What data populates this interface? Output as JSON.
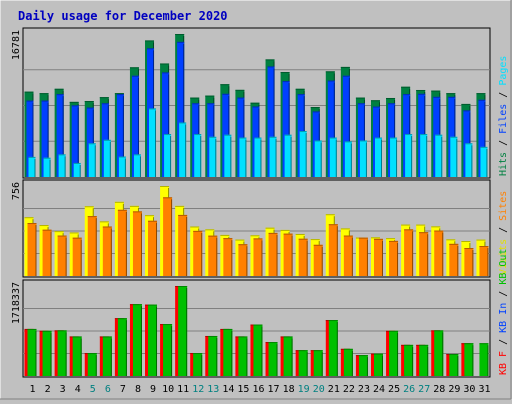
{
  "chart_data": {
    "type": "bar",
    "title": "Daily usage for December 2020",
    "categories": [
      "1",
      "2",
      "3",
      "4",
      "5",
      "6",
      "7",
      "8",
      "9",
      "10",
      "11",
      "12",
      "13",
      "14",
      "15",
      "16",
      "17",
      "18",
      "19",
      "20",
      "21",
      "22",
      "23",
      "24",
      "25",
      "26",
      "27",
      "28",
      "29",
      "30",
      "31"
    ],
    "weekend_categories": [
      "5",
      "6",
      "12",
      "13",
      "19",
      "20",
      "26",
      "27"
    ],
    "panels": [
      {
        "name": "top",
        "ymax_label": "16781",
        "ylim": [
          0,
          16781
        ],
        "right_labels": [
          {
            "text": "Hits",
            "color": "#008040"
          },
          {
            "text": " / ",
            "color": "#000000"
          },
          {
            "text": "Files",
            "color": "#0040ff"
          },
          {
            "text": " / ",
            "color": "#000000"
          },
          {
            "text": "Pages",
            "color": "#00e0ff"
          }
        ],
        "series": [
          {
            "name": "Hits",
            "color": "#008040",
            "values": [
              10017,
              9839,
              10351,
              8816,
              8919,
              9370,
              9839,
              12874,
              16027,
              13323,
              16781,
              9321,
              9553,
              10890,
              10226,
              8717,
              13802,
              12317,
              10351,
              8208,
              12400,
              12917,
              9320,
              9007,
              9272,
              10591,
              10210,
              10140,
              9839,
              8574,
              9839
            ]
          },
          {
            "name": "Files",
            "color": "#0040ff",
            "values": [
              8966,
              8966,
              9724,
              8405,
              8151,
              8651,
              9724,
              11881,
              15100,
              12274,
              15857,
              8651,
              8651,
              9760,
              9321,
              8278,
              12976,
              11254,
              9724,
              7695,
              11319,
              11881,
              8651,
              8266,
              8651,
              9724,
              9760,
              9406,
              9406,
              7816,
              9060
            ]
          },
          {
            "name": "Pages",
            "color": "#00e0ff",
            "values": [
              2356,
              2259,
              2656,
              1647,
              3955,
              4362,
              2403,
              2656,
              8049,
              5039,
              6399,
              5039,
              4716,
              4960,
              4630,
              4630,
              4716,
              4960,
              5392,
              4288,
              4630,
              4178,
              4288,
              4630,
              4630,
              5039,
              5039,
              4960,
              4716,
              3955,
              3533
            ]
          }
        ]
      },
      {
        "name": "middle",
        "ymax_label": "756",
        "ylim": [
          0,
          756
        ],
        "right_labels": [
          {
            "text": "Visits",
            "color": "#e0e000"
          },
          {
            "text": " / ",
            "color": "#000000"
          },
          {
            "text": "Sites",
            "color": "#ff8000"
          }
        ],
        "series": [
          {
            "name": "Visits",
            "color": "#ffff00",
            "values": [
              494,
              428,
              377,
              366,
              586,
              459,
              623,
              589,
              511,
              756,
              589,
              416,
              392,
              345,
              306,
              342,
              406,
              387,
              353,
              310,
              519,
              400,
              323,
              325,
              318,
              432,
              432,
              417,
              308,
              294,
              306
            ]
          },
          {
            "name": "Sites",
            "color": "#ff8000",
            "values": [
              445,
              389,
              340,
              322,
              503,
              416,
              556,
              543,
              464,
              661,
              513,
              379,
              339,
              318,
              267,
              316,
              362,
              356,
              313,
              262,
              435,
              340,
              322,
              312,
              295,
              392,
              368,
              382,
              270,
              235,
              252
            ]
          }
        ]
      },
      {
        "name": "bottom",
        "ymax_label": "1718337",
        "ylim": [
          0,
          1718337
        ],
        "right_labels": [
          {
            "text": "KB F",
            "color": "#ff0000"
          },
          {
            "text": " / ",
            "color": "#000000"
          },
          {
            "text": "KB In",
            "color": "#0040ff"
          },
          {
            "text": " / ",
            "color": "#000000"
          },
          {
            "text": "KB Out",
            "color": "#00c000"
          }
        ],
        "series": [
          {
            "name": "KB F",
            "color": "#ff0000",
            "values": [
              898370,
              862640,
              871571,
              755486,
              437987,
              755486,
              1103838,
              1371700,
              1362769,
              991941,
              1718337,
              437987,
              763987,
              898370,
              755486,
              982652,
              647627,
              755486,
              492848,
              492848,
              1068102,
              518631,
              398712,
              427256,
              862640,
              594211,
              594211,
              871571,
              419321,
              626220,
              0
            ]
          },
          {
            "name": "KB In",
            "color": "#0040ff",
            "values": [
              0,
              0,
              0,
              0,
              0,
              0,
              0,
              0,
              0,
              0,
              0,
              0,
              0,
              0,
              0,
              0,
              0,
              0,
              0,
              0,
              0,
              0,
              0,
              0,
              0,
              0,
              0,
              0,
              0,
              0,
              0
            ]
          },
          {
            "name": "KB Out",
            "color": "#00c000",
            "values": [
              898370,
              862640,
              871571,
              755486,
              437987,
              755486,
              1103838,
              1371700,
              1362769,
              991941,
              1718337,
              437987,
              763987,
              898370,
              755486,
              982652,
              647627,
              755486,
              492848,
              492848,
              1068102,
              518631,
              398712,
              427256,
              862640,
              594211,
              594211,
              871571,
              419321,
              626220,
              626220
            ]
          }
        ]
      }
    ]
  }
}
